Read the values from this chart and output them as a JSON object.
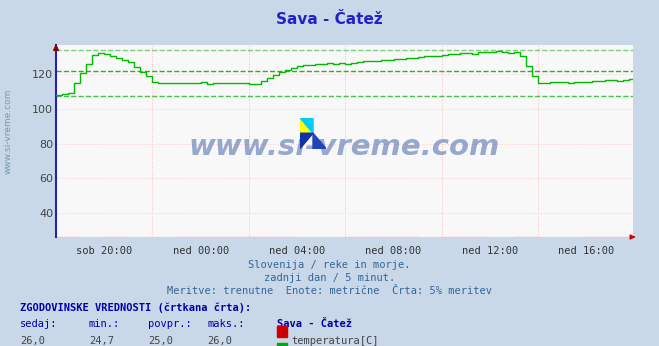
{
  "title": "Sava - Čatež",
  "title_color": "#2222cc",
  "bg_color": "#c8d8e8",
  "plot_bg_color": "#f8f8f8",
  "ylim": [
    26,
    137
  ],
  "yticks": [
    40,
    60,
    80,
    100,
    120
  ],
  "xlim": [
    0,
    287
  ],
  "xtick_labels": [
    "sob 20:00",
    "ned 00:00",
    "ned 04:00",
    "ned 08:00",
    "ned 12:00",
    "ned 16:00"
  ],
  "xtick_positions": [
    24,
    72,
    120,
    168,
    216,
    264
  ],
  "subtitle_lines": [
    "Slovenija / reke in morje.",
    "zadnji dan / 5 minut.",
    "Meritve: trenutne  Enote: metrične  Črta: 5% meritev"
  ],
  "watermark": "www.si-vreme.com",
  "temp_value": 26.0,
  "temp_min": 24.7,
  "temp_avg": 25.0,
  "temp_max": 26.0,
  "flow_current": 127.1,
  "flow_min": 107.3,
  "flow_avg": 122.0,
  "flow_max": 133.9,
  "table_header": "ZGODOVINSKE VREDNOSTI (črtkana črta):",
  "col_headers": [
    "sedaj:",
    "min.:",
    "povpr.:",
    "maks.:",
    "Sava - Čatež"
  ],
  "grid_color": "#ffcccc",
  "vgrid_color": "#ffbbbb",
  "axis_color": "#2222bb",
  "temp_color": "#cc2222",
  "flow_color": "#00bb00",
  "flow_dash_color": "#00aa00",
  "temp_dash_color": "#cc0000",
  "n_points": 288
}
